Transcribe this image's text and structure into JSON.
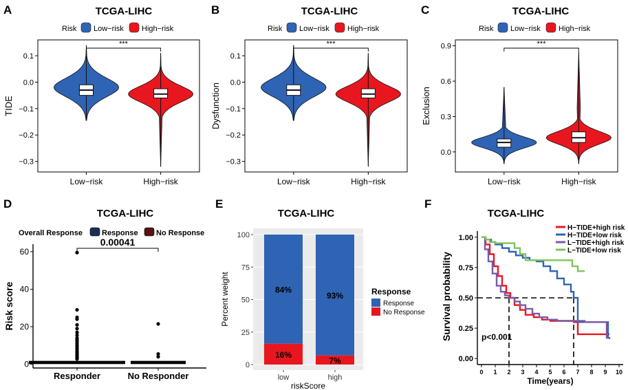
{
  "colors": {
    "low_risk": "#2f63b4",
    "high_risk": "#e8171f",
    "response": "#2f63b4",
    "no_response": "#e8171f",
    "km_h_high": "#e8171f",
    "km_h_low": "#2f63b4",
    "km_l_high": "#7b5aa6",
    "km_l_low": "#7ec35a"
  },
  "chart_data": [
    {
      "panel": "A",
      "type": "violin",
      "title": "TCGA-LIHC",
      "legend_title": "Risk",
      "legend": [
        "Low−risk",
        "High−risk"
      ],
      "ylabel": "TIDE",
      "categories": [
        "Low−risk",
        "High−risk"
      ],
      "yticks": [
        "0.1",
        "0.0",
        "−0.1",
        "−0.2",
        "−0.3"
      ],
      "ytick_values": [
        0.1,
        0.0,
        -0.1,
        -0.2,
        -0.3
      ],
      "ylim": [
        -0.34,
        0.16
      ],
      "significance": "***",
      "groups": [
        {
          "min": -0.145,
          "q1": -0.05,
          "median": -0.03,
          "q3": -0.01,
          "max": 0.14,
          "mode": -0.02,
          "spread": 0.042,
          "bulk": 0.22
        },
        {
          "min": -0.32,
          "q1": -0.06,
          "median": -0.045,
          "q3": -0.025,
          "max": 0.11,
          "mode": -0.045,
          "spread": 0.036,
          "bulk": 0.12
        }
      ]
    },
    {
      "panel": "B",
      "type": "violin",
      "title": "TCGA-LIHC",
      "legend_title": "Risk",
      "legend": [
        "Low−risk",
        "High−risk"
      ],
      "ylabel": "Dysfunction",
      "categories": [
        "Low−risk",
        "High−risk"
      ],
      "yticks": [
        "0.1",
        "0.0",
        "−0.1",
        "−0.2",
        "−0.3"
      ],
      "ytick_values": [
        0.1,
        0.0,
        -0.1,
        -0.2,
        -0.3
      ],
      "ylim": [
        -0.34,
        0.16
      ],
      "significance": "***",
      "groups": [
        {
          "min": -0.145,
          "q1": -0.05,
          "median": -0.03,
          "q3": -0.01,
          "max": 0.14,
          "mode": -0.02,
          "spread": 0.042,
          "bulk": 0.22
        },
        {
          "min": -0.32,
          "q1": -0.06,
          "median": -0.045,
          "q3": -0.025,
          "max": 0.11,
          "mode": -0.045,
          "spread": 0.036,
          "bulk": 0.12
        }
      ]
    },
    {
      "panel": "C",
      "type": "violin",
      "title": "TCGA-LIHC",
      "legend_title": "Risk",
      "legend": [
        "Low−risk",
        "High−risk"
      ],
      "ylabel": "Exclusion",
      "categories": [
        "Low−risk",
        "High−risk"
      ],
      "yticks": [
        "0.9",
        "0.6",
        "0.3",
        "0.0"
      ],
      "ytick_values": [
        0.9,
        0.6,
        0.3,
        0.0
      ],
      "ylim": [
        -0.17,
        0.95
      ],
      "significance": "***",
      "groups": [
        {
          "min": -0.1,
          "q1": 0.04,
          "median": 0.08,
          "q3": 0.11,
          "max": 0.55,
          "mode": 0.08,
          "spread": 0.055,
          "bulk": 0.3
        },
        {
          "min": -0.1,
          "q1": 0.08,
          "median": 0.12,
          "q3": 0.17,
          "max": 0.85,
          "mode": 0.12,
          "spread": 0.065,
          "bulk": 0.45
        }
      ]
    },
    {
      "panel": "D",
      "type": "box",
      "title": "TCGA-LIHC",
      "legend_title": "Overall Response",
      "legend": [
        "Response",
        "No Response"
      ],
      "ylabel": "Risk score",
      "categories": [
        "Responder",
        "No Responder"
      ],
      "yticks": [
        "60",
        "40",
        "20",
        "0"
      ],
      "ytick_values": [
        60,
        40,
        20,
        0
      ],
      "ylim": [
        -2,
        64
      ],
      "pvalue": "0.00041",
      "outliers": [
        [
          59.5,
          29,
          25,
          24,
          21,
          19,
          17,
          15.5,
          14,
          13,
          12,
          11,
          10,
          9,
          8,
          7,
          6.3,
          5.6,
          5,
          4.4,
          3.8,
          3.3,
          2.8
        ],
        [
          21.5,
          5.5,
          4
        ]
      ]
    },
    {
      "panel": "E",
      "type": "bar",
      "title": "TCGA-LIHC",
      "xlabel": "riskScore",
      "ylabel": "Percent weight",
      "categories": [
        "low",
        "high"
      ],
      "yticks": [
        "100",
        "75",
        "50",
        "25",
        "0"
      ],
      "ytick_values": [
        100,
        75,
        50,
        25,
        0
      ],
      "ylim": [
        0,
        100
      ],
      "legend_title": "Response",
      "legend": [
        "Response",
        "No Response"
      ],
      "series": [
        {
          "name": "Response",
          "values": [
            84,
            93
          ],
          "labels": [
            "84%",
            "93%"
          ]
        },
        {
          "name": "No Response",
          "values": [
            16,
            7
          ],
          "labels": [
            "16%",
            "7%"
          ]
        }
      ]
    },
    {
      "panel": "F",
      "type": "line",
      "title": "TCGA-LIHC",
      "xlabel": "Time(years)",
      "ylabel": "Survival probability",
      "xticks": [
        "0",
        "1",
        "2",
        "3",
        "4",
        "5",
        "6",
        "7",
        "8",
        "9",
        "10"
      ],
      "xtick_values": [
        0,
        1,
        2,
        3,
        4,
        5,
        6,
        7,
        8,
        9,
        10
      ],
      "yticks": [
        "1.00",
        "0.75",
        "0.50",
        "0.25",
        "0.00"
      ],
      "ytick_values": [
        1.0,
        0.75,
        0.5,
        0.25,
        0.0
      ],
      "xlim": [
        -0.3,
        10.3
      ],
      "ylim": [
        -0.05,
        1.05
      ],
      "pvalue": "p<0.001",
      "median_lines": [
        {
          "x": 2.0,
          "y": 0.5
        },
        {
          "x": 6.7,
          "y": 0.5
        }
      ],
      "legend": [
        "H−TIDE+high risk",
        "H−TIDE+low risk",
        "L−TIDE+high risk",
        "L−TIDE+low risk"
      ],
      "series": [
        {
          "name": "H−TIDE+high risk",
          "x": [
            0,
            0.3,
            0.6,
            0.9,
            1.2,
            1.5,
            1.8,
            2.1,
            2.4,
            2.8,
            3.2,
            3.8,
            4.4,
            5.0,
            5.6,
            6.2,
            6.7,
            7.0,
            7.6,
            8.2,
            8.6,
            9.0,
            9.3
          ],
          "y": [
            1.0,
            0.94,
            0.86,
            0.76,
            0.68,
            0.6,
            0.54,
            0.5,
            0.44,
            0.4,
            0.36,
            0.34,
            0.32,
            0.31,
            0.31,
            0.31,
            0.3,
            0.2,
            0.2,
            0.2,
            0.2,
            0.2,
            0.2
          ]
        },
        {
          "name": "H−TIDE+low risk",
          "x": [
            0,
            0.3,
            0.7,
            1.0,
            1.5,
            2.0,
            2.5,
            3.0,
            3.5,
            4.0,
            4.5,
            5.0,
            5.5,
            6.0,
            6.5,
            6.7,
            7.0,
            7.5,
            8.0,
            8.5,
            8.8,
            9.2
          ],
          "y": [
            1.0,
            0.98,
            0.96,
            0.94,
            0.91,
            0.88,
            0.85,
            0.83,
            0.81,
            0.8,
            0.76,
            0.72,
            0.66,
            0.61,
            0.55,
            0.5,
            0.3,
            0.3,
            0.3,
            0.3,
            0.3,
            0.17
          ]
        },
        {
          "name": "L−TIDE+high risk",
          "x": [
            0,
            0.25,
            0.5,
            0.8,
            1.1,
            1.4,
            1.7,
            2.0,
            2.4,
            2.8,
            3.2,
            3.7,
            4.2,
            4.8,
            5.5,
            6.2,
            6.8,
            7.5,
            8.2,
            8.8,
            9.1,
            9.3
          ],
          "y": [
            1.0,
            0.9,
            0.8,
            0.7,
            0.6,
            0.55,
            0.52,
            0.5,
            0.47,
            0.44,
            0.41,
            0.37,
            0.34,
            0.32,
            0.31,
            0.31,
            0.31,
            0.3,
            0.3,
            0.3,
            0.17,
            0.16
          ]
        },
        {
          "name": "L−TIDE+low risk",
          "x": [
            0,
            0.3,
            0.6,
            1.0,
            1.5,
            2.0,
            2.4,
            2.8,
            3.2,
            4.0,
            5.0,
            6.0,
            6.6,
            7.0,
            7.5
          ],
          "y": [
            1.0,
            0.98,
            0.96,
            0.95,
            0.95,
            0.95,
            0.91,
            0.86,
            0.81,
            0.81,
            0.81,
            0.81,
            0.76,
            0.72,
            0.72
          ]
        }
      ]
    }
  ]
}
